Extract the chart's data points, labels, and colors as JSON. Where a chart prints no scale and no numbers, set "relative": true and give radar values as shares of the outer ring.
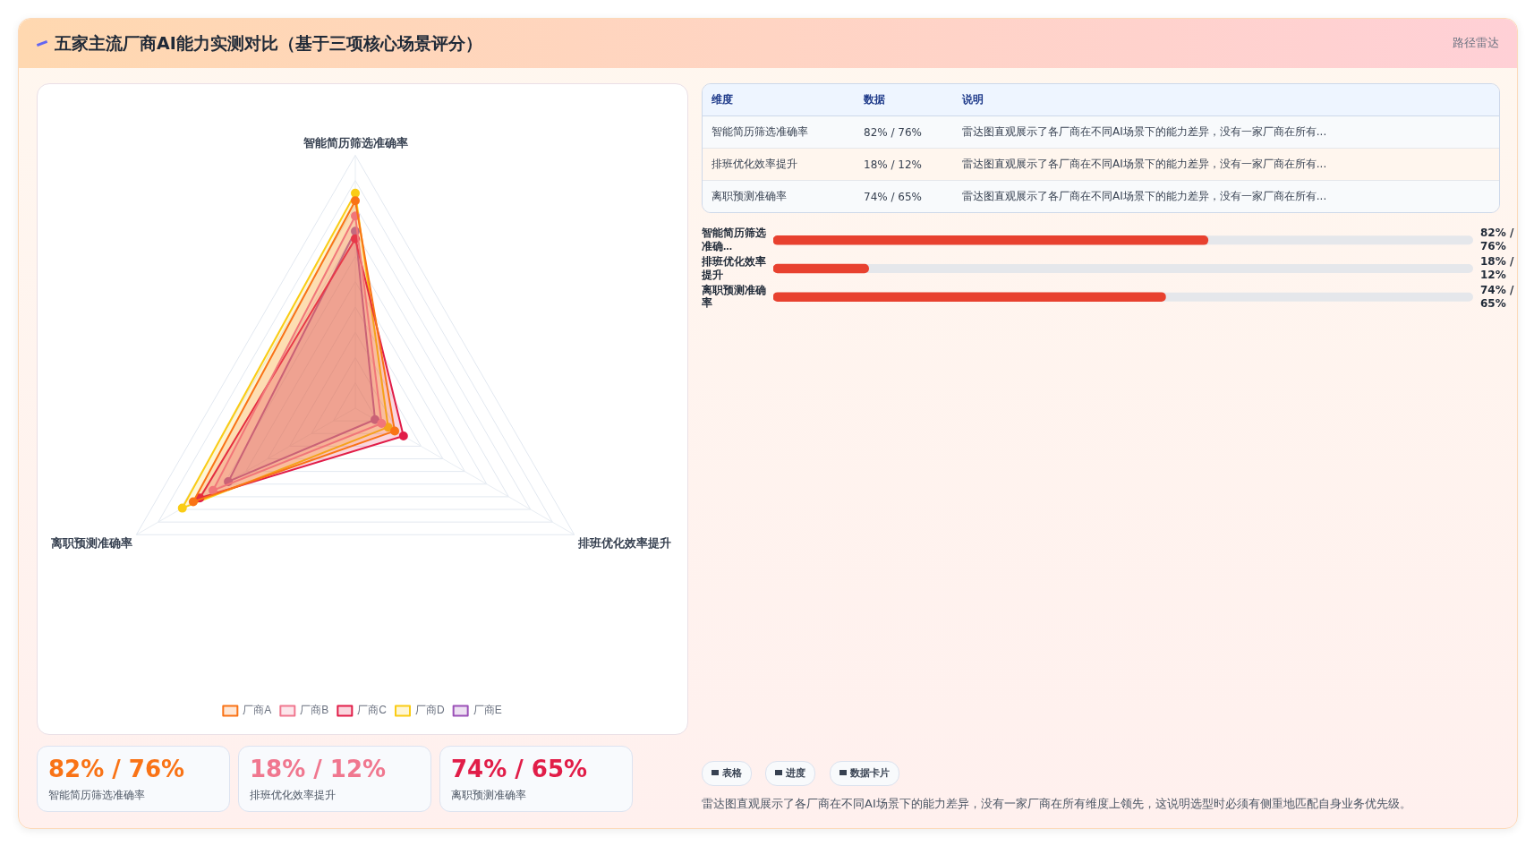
{
  "chart_data": [
    {
      "type": "radar",
      "title": "五家主流厂商AI能力实测对比（基于三项核心场景评分）",
      "categories": [
        "智能简历筛选准确率",
        "排班优化效率提升",
        "离职预测准确率"
      ],
      "relative": true,
      "grid": true,
      "legend": "bottom",
      "marker": "circle",
      "series": [
        {
          "name": "厂商A",
          "color": "#f97316",
          "values": [
            0.82,
            0.18,
            0.74
          ]
        },
        {
          "name": "厂商B",
          "color": "#f0778f",
          "values": [
            0.76,
            0.12,
            0.65
          ]
        },
        {
          "name": "厂商C",
          "color": "#e11d48",
          "values": [
            0.67,
            0.22,
            0.71
          ]
        },
        {
          "name": "厂商D",
          "color": "#facc15",
          "values": [
            0.85,
            0.15,
            0.79
          ]
        },
        {
          "name": "厂商E",
          "color": "#9b51b8",
          "values": [
            0.7,
            0.09,
            0.58
          ]
        }
      ]
    },
    {
      "type": "bar",
      "orientation": "horizontal",
      "tick_labels": "y",
      "xlim": [
        0,
        132
      ],
      "categories": [
        "智能简历筛选准确...",
        "排班优化效率提升",
        "离职预测准确率"
      ],
      "values": [
        82,
        18,
        74
      ],
      "color": "#e8412f",
      "value_labels": [
        "82% / 76%",
        "18% / 12%",
        "74% / 65%"
      ]
    },
    {
      "type": "other",
      "annotations": [
        "路径雷达",
        "维度",
        "数据",
        "说明",
        "智能简历筛选准确率",
        "82% / 76%",
        "雷达图直观展示了各厂商在不同AI场景下的能力差异，没有一家厂商在所有...",
        "排班优化效率提升",
        "18% / 12%",
        "雷达图直观展示了各厂商在不同AI场景下的能力差异，没有一家厂商在所有...",
        "离职预测准确率",
        "74% / 65%",
        "雷达图直观展示了各厂商在不同AI场景下的能力差异，没有一家厂商在所有...",
        "82% / 76%",
        "智能简历筛选准确率",
        "18% / 12%",
        "排班优化效率提升",
        "74% / 65%",
        "离职预测准确率",
        "表格",
        "进度",
        "数据卡片",
        "雷达图直观展示了各厂商在不同AI场景下的能力差异，没有一家厂商在所有维度上领先，这说明选型时必须有侧重地匹配自身业务优先级。"
      ]
    }
  ]
}
